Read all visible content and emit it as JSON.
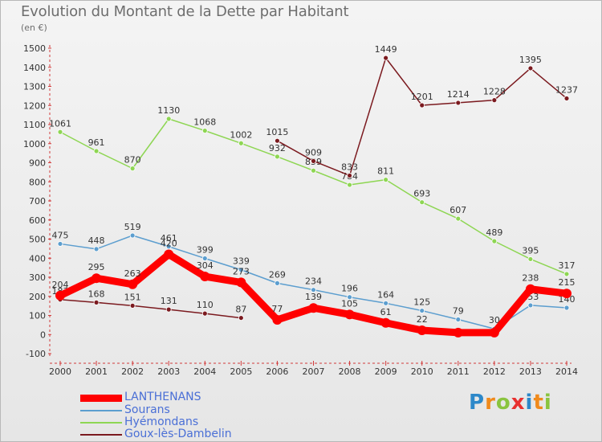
{
  "chart_data": {
    "type": "line",
    "title": "Evolution du Montant de la Dette par Habitant",
    "subtitle": "(en €)",
    "xlabel": "",
    "ylabel": "",
    "ylim": [
      -100,
      1500
    ],
    "yticks": [
      -100,
      0,
      100,
      200,
      300,
      400,
      500,
      600,
      700,
      800,
      900,
      1000,
      1100,
      1200,
      1300,
      1400,
      1500
    ],
    "grid": false,
    "legend": "bottom-left",
    "x": [
      "2000",
      "2001",
      "2002",
      "2003",
      "2004",
      "2005",
      "2006",
      "2007",
      "2008",
      "2009",
      "2010",
      "2011",
      "2012",
      "2013",
      "2014"
    ],
    "series": [
      {
        "name": "Hyémondans",
        "color": "#8ed653",
        "values": [
          1061,
          961,
          870,
          1130,
          1068,
          1002,
          932,
          859,
          784,
          811,
          693,
          607,
          489,
          395,
          317
        ],
        "labels": [
          "1061",
          "961",
          "870",
          "1130",
          "1068",
          "1002",
          "932",
          "859",
          "784",
          "811",
          "693",
          "607",
          "489",
          "395",
          "317"
        ]
      },
      {
        "name": "Sourans",
        "color": "#5c9ecf",
        "values": [
          475,
          448,
          519,
          461,
          399,
          339,
          269,
          234,
          196,
          164,
          125,
          79,
          30,
          153,
          140
        ],
        "labels": [
          "475",
          "448",
          "519",
          "461",
          "399",
          "339",
          "269",
          "234",
          "196",
          "164",
          "125",
          "79",
          "30",
          "153",
          "140"
        ]
      },
      {
        "name": "Goux-lès-Dambelin",
        "color": "#7b1a1f",
        "values": [
          183,
          168,
          151,
          131,
          110,
          87,
          1015,
          909,
          833,
          1449,
          1201,
          1214,
          1228,
          1395,
          1237
        ],
        "labels": [
          "183",
          "168",
          "151",
          "131",
          "110",
          "87",
          "1015",
          "909",
          "833",
          "1449",
          "1201",
          "1214",
          "1228",
          "1395",
          "1237"
        ]
      },
      {
        "name": "LANTHENANS",
        "color": "#ff0000",
        "values": [
          204,
          295,
          263,
          420,
          304,
          273,
          77,
          139,
          105,
          61,
          22,
          10,
          10,
          238,
          215
        ],
        "labels": [
          "204",
          "295",
          "263",
          "420",
          "304",
          "273",
          "77",
          "139",
          "105",
          "61",
          "22",
          "",
          "",
          "238",
          "215"
        ]
      }
    ]
  },
  "legend": [
    {
      "name": "LANTHENANS",
      "color": "#ff0000",
      "thickness": 9
    },
    {
      "name": "Sourans",
      "color": "#5c9ecf",
      "thickness": 2
    },
    {
      "name": "Hyémondans",
      "color": "#8ed653",
      "thickness": 2
    },
    {
      "name": "Goux-lès-Dambelin",
      "color": "#7b1a1f",
      "thickness": 2
    }
  ],
  "logo": {
    "letters": [
      "P",
      "r",
      "o",
      "x",
      "i",
      "t",
      "i"
    ]
  }
}
